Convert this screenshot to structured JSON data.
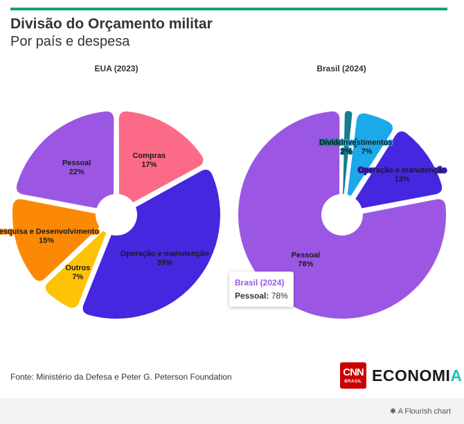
{
  "header": {
    "title": "Divisão do Orçamento militar",
    "subtitle": "Por país e despesa"
  },
  "chart_data": [
    {
      "type": "pie",
      "title": "EUA (2023)",
      "slices": [
        {
          "label": "Compras",
          "value": 17,
          "value_label": "17%",
          "color": "#fb6b87"
        },
        {
          "label": "Operação e manutenção",
          "value": 39,
          "value_label": "39%",
          "color": "#4527e0"
        },
        {
          "label": "Outros",
          "value": 7,
          "value_label": "7%",
          "color": "#fec304"
        },
        {
          "label": "Pesquisa e Desenvolvimento",
          "value": 15,
          "value_label": "15%",
          "color": "#fc8906"
        },
        {
          "label": "Pessoal",
          "value": 22,
          "value_label": "22%",
          "color": "#9b57e3"
        }
      ]
    },
    {
      "type": "pie",
      "title": "Brasil (2024)",
      "slices": [
        {
          "label": "Dívidas e juros",
          "value": 2,
          "value_label": "2%",
          "color": "#157e8c"
        },
        {
          "label": "Investimentos",
          "value": 7,
          "value_label": "7%",
          "color": "#1ca9ea"
        },
        {
          "label": "Operação e manutenção",
          "value": 13,
          "value_label": "13%",
          "color": "#4527e0"
        },
        {
          "label": "Pessoal",
          "value": 78,
          "value_label": "78%",
          "color": "#9b57e3"
        }
      ]
    }
  ],
  "tooltip": {
    "title": "Brasil (2024)",
    "key": "Pessoal:",
    "value": "78%"
  },
  "footer": {
    "source": "Fonte: Ministério da Defesa e Peter G. Peterson Foundation",
    "logo_cnn": "CNN",
    "logo_brasil": "BRASIL",
    "brand_main": "ECONOMI",
    "brand_accent": "A",
    "flourish": "A Flourish chart"
  }
}
